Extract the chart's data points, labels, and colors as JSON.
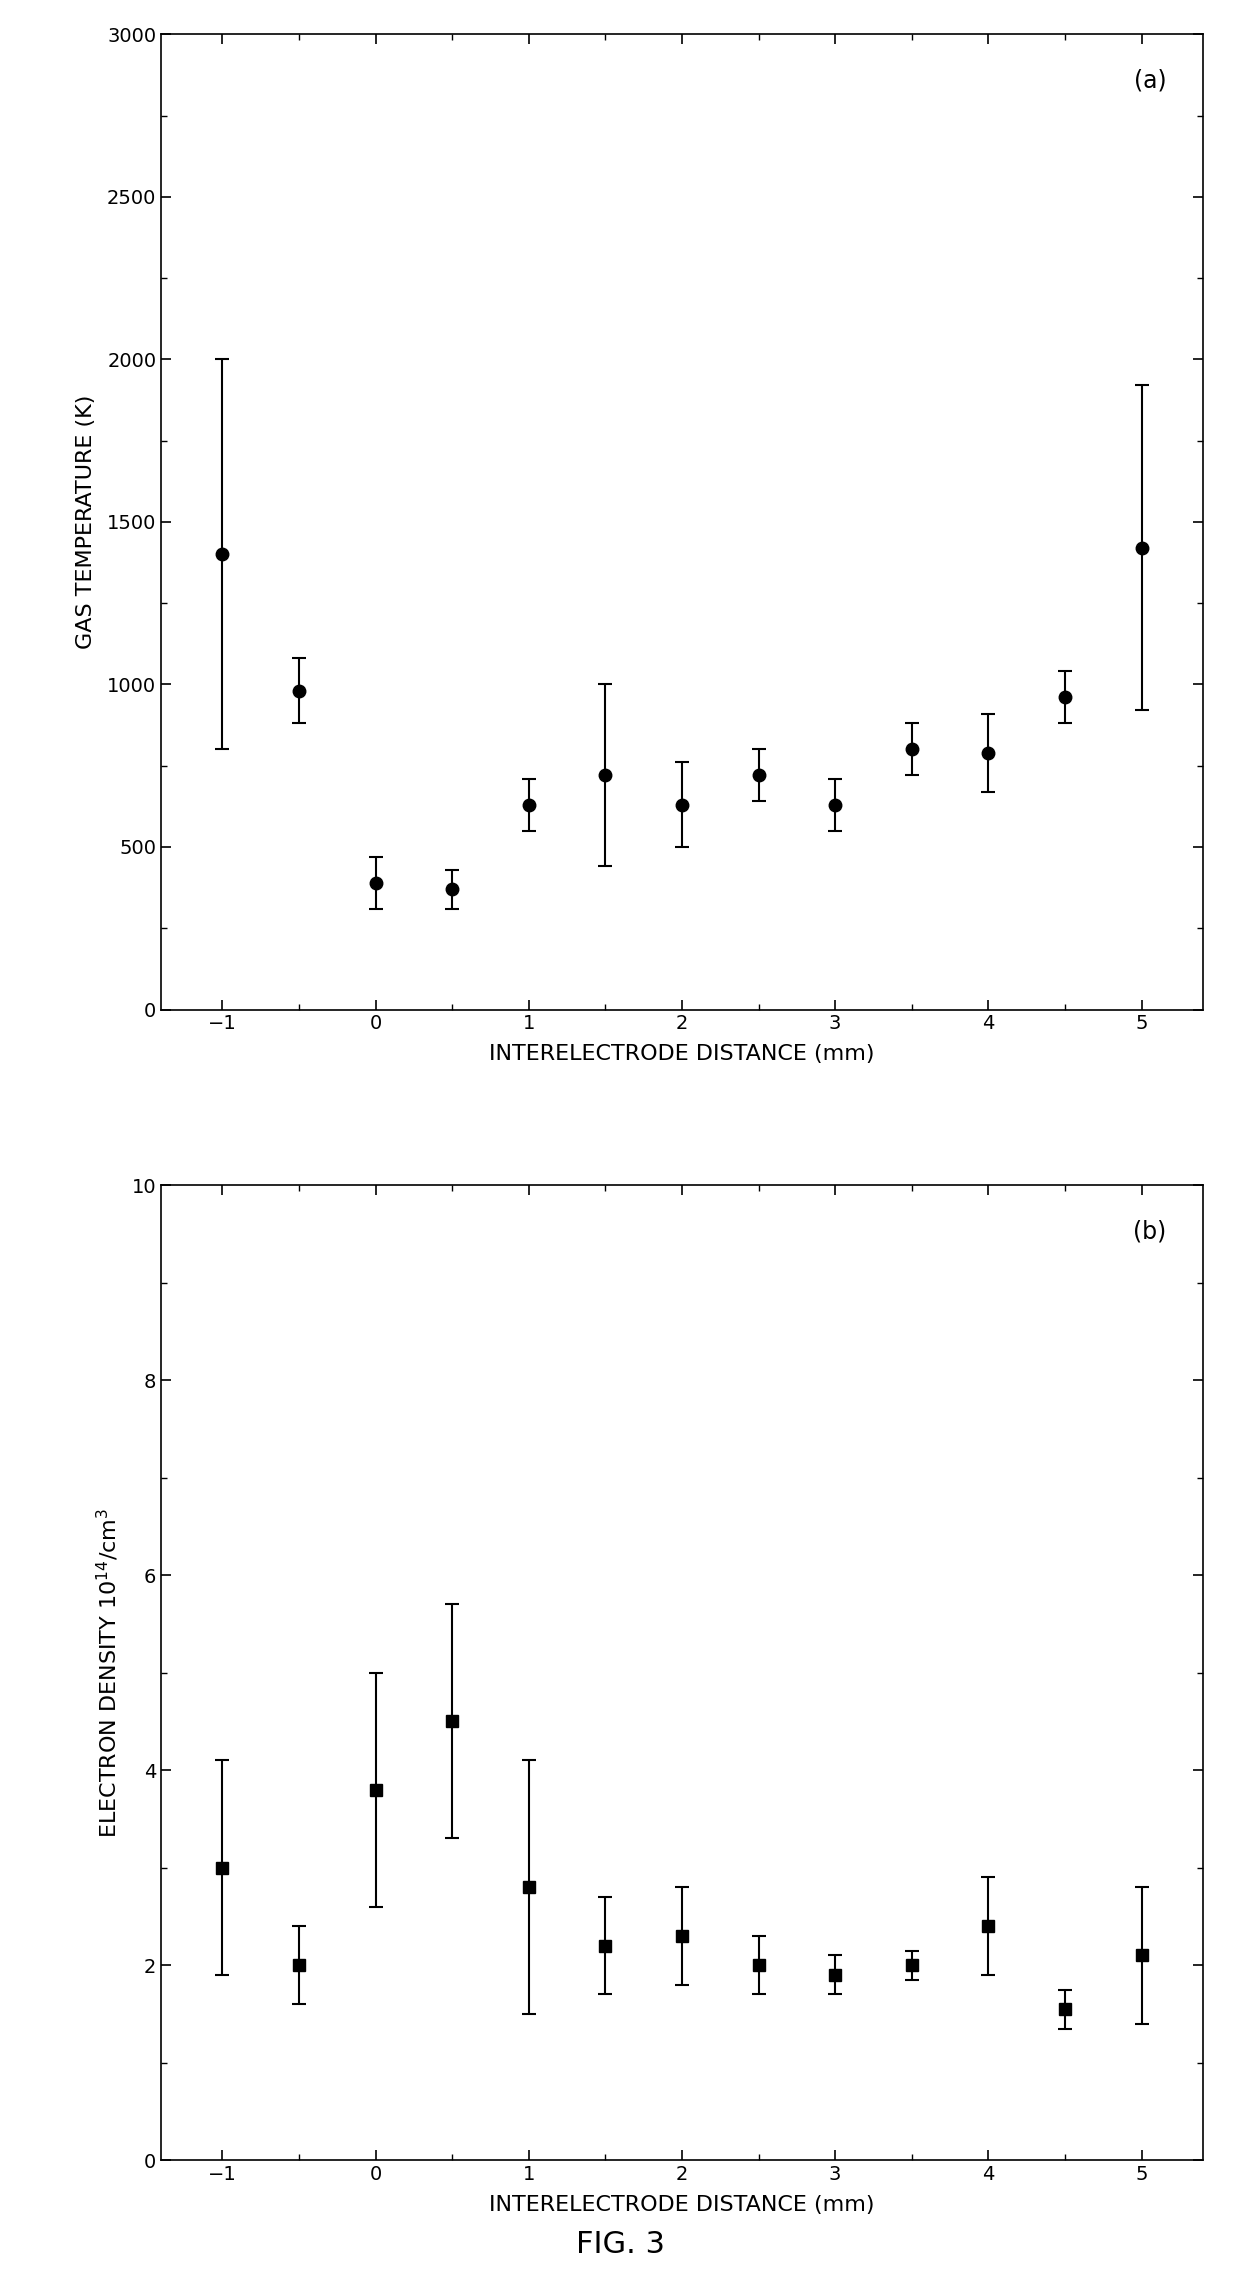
{
  "panel_a": {
    "label": "(a)",
    "x": [
      -1,
      -0.5,
      0,
      0.5,
      1,
      1.5,
      2,
      2.5,
      3,
      3.5,
      4,
      4.5,
      5
    ],
    "y": [
      1400,
      980,
      390,
      370,
      630,
      720,
      630,
      720,
      630,
      800,
      790,
      960,
      1420
    ],
    "yerr_lo": [
      600,
      100,
      80,
      60,
      80,
      280,
      130,
      80,
      80,
      80,
      120,
      80,
      500
    ],
    "yerr_hi": [
      600,
      100,
      80,
      60,
      80,
      280,
      130,
      80,
      80,
      80,
      120,
      80,
      500
    ],
    "xlabel": "INTERELECTRODE DISTANCE (mm)",
    "ylabel": "GAS TEMPERATURE (K)",
    "xlim": [
      -1.4,
      5.4
    ],
    "ylim": [
      0,
      3000
    ],
    "yticks": [
      0,
      500,
      1000,
      1500,
      2000,
      2500,
      3000
    ],
    "xticks": [
      -1,
      0,
      1,
      2,
      3,
      4,
      5
    ]
  },
  "panel_b": {
    "label": "(b)",
    "x": [
      -1,
      -0.5,
      0,
      0.5,
      1,
      1.5,
      2,
      2.5,
      3,
      3.5,
      4,
      4.5,
      5
    ],
    "y": [
      3.0,
      2.0,
      3.8,
      4.5,
      2.8,
      2.2,
      2.3,
      2.0,
      1.9,
      2.0,
      2.4,
      1.55,
      2.1
    ],
    "yerr_lo": [
      1.1,
      0.4,
      1.2,
      1.2,
      1.3,
      0.5,
      0.5,
      0.3,
      0.2,
      0.15,
      0.5,
      0.2,
      0.7
    ],
    "yerr_hi": [
      1.1,
      0.4,
      1.2,
      1.2,
      1.3,
      0.5,
      0.5,
      0.3,
      0.2,
      0.15,
      0.5,
      0.2,
      0.7
    ],
    "xlabel": "INTERELECTRODE DISTANCE (mm)",
    "ylabel": "ELECTRON DENSITY 10¹⁴/cm³",
    "xlim": [
      -1.4,
      5.4
    ],
    "ylim": [
      0,
      10
    ],
    "yticks": [
      0,
      2,
      4,
      6,
      8,
      10
    ],
    "xticks": [
      -1,
      0,
      1,
      2,
      3,
      4,
      5
    ]
  },
  "fig_label": "FIG. 3",
  "background_color": "#ffffff",
  "marker_color": "#000000",
  "marker_a": "o",
  "marker_b": "s",
  "marker_size": 9,
  "capsize": 5,
  "elinewidth": 1.5,
  "capthick": 1.5,
  "label_fontsize": 16,
  "tick_fontsize": 14,
  "panel_label_fontsize": 17,
  "fig_label_fontsize": 22
}
